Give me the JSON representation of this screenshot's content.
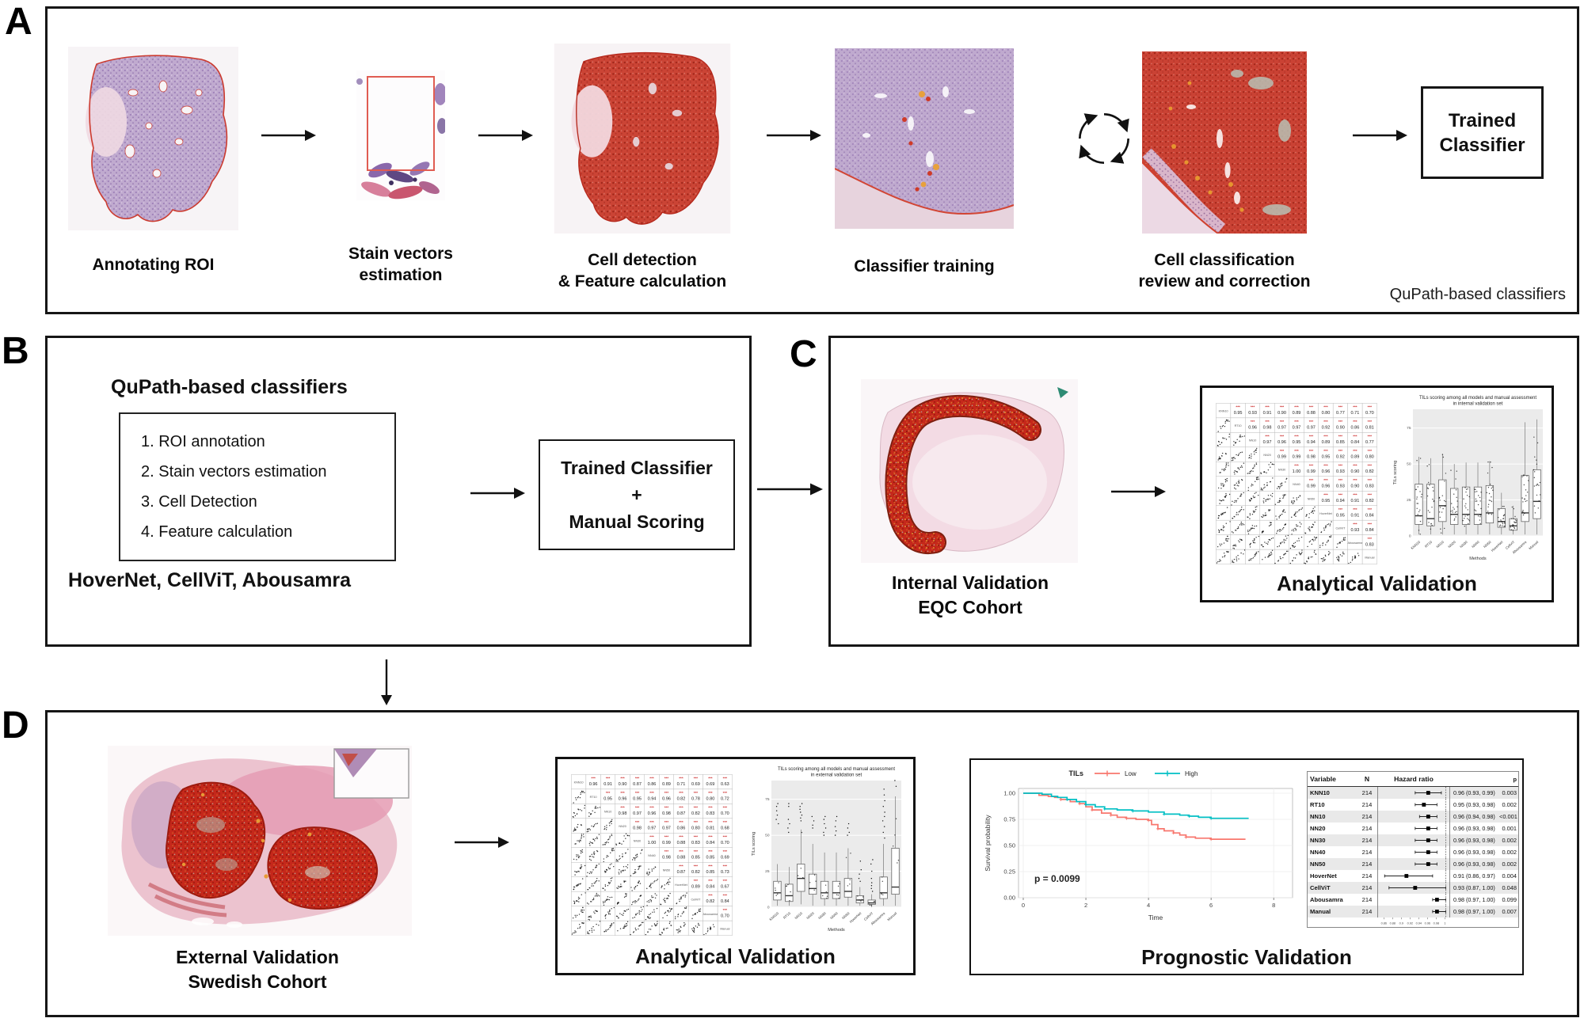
{
  "panel_a": {
    "letter": "A",
    "steps": [
      {
        "caption": [
          "Annotating ROI"
        ]
      },
      {
        "caption": [
          "Stain vectors",
          "estimation"
        ]
      },
      {
        "caption": [
          "Cell detection",
          "& Feature calculation"
        ]
      },
      {
        "caption": [
          "Classifier training"
        ]
      },
      {
        "caption": [
          "Cell classification",
          "review and correction"
        ]
      }
    ],
    "result_box": [
      "Trained",
      "Classifier"
    ],
    "corner_note": "QuPath-based classifiers"
  },
  "panel_b": {
    "letter": "B",
    "heading": "QuPath-based classifiers",
    "pipeline_steps": [
      "1. ROI annotation",
      "2. Stain vectors estimation",
      "3. Cell Detection",
      "4. Feature calculation"
    ],
    "models": "HoverNet, CellViT, Abousamra",
    "result_box": [
      "Trained Classifier",
      "+",
      "Manual Scoring"
    ]
  },
  "panel_c": {
    "letter": "C",
    "cohort_caption": [
      "Internal Validation",
      "EQC Cohort"
    ],
    "validation_title": "Analytical Validation"
  },
  "panel_d": {
    "letter": "D",
    "cohort_caption": [
      "External Validation",
      "Swedish Cohort"
    ],
    "analytical_title": "Analytical Validation",
    "prognostic_title": "Prognostic Validation"
  },
  "methods": [
    "KNN10",
    "RT10",
    "NN10",
    "NN20",
    "NN30",
    "NN40",
    "NN50",
    "HoverNet",
    "CellViT",
    "Abousamra",
    "Manual"
  ],
  "chart_data": {
    "internal_pairs": {
      "type": "scatter",
      "subtype": "pairs-correlation-matrix",
      "significance": "***",
      "upper_r": [
        [
          "0.95",
          "0.93",
          "0.91",
          "0.90",
          "0.89",
          "0.88",
          "0.80",
          "0.77",
          "0.71",
          "0.70"
        ],
        [
          "0.96",
          "0.98",
          "0.97",
          "0.97",
          "0.97",
          "0.92",
          "0.90",
          "0.86",
          "0.81"
        ],
        [
          "0.97",
          "0.96",
          "0.95",
          "0.94",
          "0.89",
          "0.85",
          "0.84",
          "0.77"
        ],
        [
          "0.99",
          "0.99",
          "0.98",
          "0.95",
          "0.92",
          "0.89",
          "0.80"
        ],
        [
          "1.00",
          "0.99",
          "0.96",
          "0.93",
          "0.90",
          "0.82"
        ],
        [
          "0.99",
          "0.96",
          "0.93",
          "0.90",
          "0.83"
        ],
        [
          "0.95",
          "0.94",
          "0.91",
          "0.82"
        ],
        [
          "0.95",
          "0.91",
          "0.84"
        ],
        [
          "0.93",
          "0.84"
        ],
        [
          "0.83"
        ]
      ]
    },
    "internal_box": {
      "type": "box",
      "title": [
        "TILs scoring among all models and manual assessment",
        "in internal validation set"
      ],
      "ylabel": "TILs scoring",
      "xlabel": "Methods",
      "yticks": [
        0,
        25,
        50,
        75
      ],
      "ylim": [
        0,
        88
      ],
      "boxes": [
        [
          1,
          8,
          14,
          36,
          55
        ],
        [
          1,
          7,
          12,
          36,
          54
        ],
        [
          1,
          10,
          21,
          39,
          57
        ],
        [
          1,
          8,
          15,
          33,
          50
        ],
        [
          1,
          8,
          15,
          34,
          51
        ],
        [
          1,
          8,
          15,
          34,
          51
        ],
        [
          1,
          9,
          16,
          35,
          52
        ],
        [
          1,
          6,
          10,
          19,
          30
        ],
        [
          1,
          4,
          7,
          12,
          21
        ],
        [
          1,
          10,
          16,
          42,
          79
        ],
        [
          1,
          12,
          24,
          46,
          81
        ]
      ],
      "outliers": [
        [],
        [],
        [],
        [],
        [],
        [],
        [],
        [],
        [],
        [],
        []
      ],
      "jitter": 20
    },
    "external_pairs": {
      "type": "scatter",
      "subtype": "pairs-correlation-matrix",
      "significance": "***",
      "upper_r": [
        [
          "0.96",
          "0.91",
          "0.90",
          "0.87",
          "0.86",
          "0.89",
          "0.71",
          "0.69",
          "0.69",
          "0.63"
        ],
        [
          "0.95",
          "0.96",
          "0.95",
          "0.94",
          "0.96",
          "0.82",
          "0.78",
          "0.80",
          "0.72"
        ],
        [
          "0.98",
          "0.97",
          "0.96",
          "0.98",
          "0.87",
          "0.82",
          "0.83",
          "0.70"
        ],
        [
          "0.98",
          "0.97",
          "0.97",
          "0.86",
          "0.80",
          "0.81",
          "0.68"
        ],
        [
          "1.00",
          "0.99",
          "0.88",
          "0.83",
          "0.84",
          "0.70"
        ],
        [
          "0.98",
          "0.88",
          "0.85",
          "0.85",
          "0.69"
        ],
        [
          "0.87",
          "0.82",
          "0.85",
          "0.73"
        ],
        [
          "0.89",
          "0.84",
          "0.67"
        ],
        [
          "0.82",
          "0.84"
        ],
        [
          "0.70"
        ]
      ]
    },
    "external_box": {
      "type": "box",
      "title": [
        "TILs scoring among all models and manual assessment",
        "in external validation set"
      ],
      "ylabel": "TILs scoring",
      "xlabel": "Methods",
      "yticks": [
        0,
        25,
        50,
        75
      ],
      "ylim": [
        0,
        88
      ],
      "boxes": [
        [
          1,
          5,
          10,
          18,
          30
        ],
        [
          1,
          4,
          8,
          16,
          28
        ],
        [
          2,
          11,
          20,
          30,
          54
        ],
        [
          1,
          9,
          13,
          23,
          44
        ],
        [
          1,
          6,
          10,
          18,
          38
        ],
        [
          1,
          6,
          10,
          18,
          38
        ],
        [
          1,
          7,
          11,
          20,
          41
        ],
        [
          1,
          3,
          5,
          8,
          14
        ],
        [
          0,
          2,
          3,
          5,
          9
        ],
        [
          1,
          6,
          10,
          21,
          44
        ],
        [
          1,
          9,
          14,
          41,
          77
        ]
      ],
      "outliers": [
        [
          58,
          61,
          64,
          67,
          70,
          72
        ],
        [
          52,
          55,
          58,
          61,
          70,
          72
        ],
        [
          60,
          62,
          64,
          66,
          68,
          70,
          72
        ],
        [
          55,
          57,
          60,
          63
        ],
        [
          50,
          52,
          55,
          58,
          61,
          63
        ],
        [
          50,
          53,
          56,
          60,
          63
        ],
        [
          50,
          52,
          55,
          58
        ],
        [
          18,
          20,
          23,
          26,
          32
        ],
        [
          11,
          13,
          15,
          17,
          20,
          25,
          30,
          33
        ],
        [
          48,
          52,
          56,
          60,
          63,
          66,
          70,
          74,
          78,
          82
        ],
        [
          84,
          88
        ]
      ],
      "jitter": 5
    },
    "km": {
      "type": "line",
      "subtype": "kaplan-meier",
      "legend_title": "TILs",
      "series": [
        {
          "name": "Low",
          "color": "#F8766D",
          "points": [
            [
              0,
              1
            ],
            [
              0.3,
              1
            ],
            [
              0.5,
              0.98
            ],
            [
              0.8,
              0.97
            ],
            [
              1,
              0.96
            ],
            [
              1.2,
              0.94
            ],
            [
              1.5,
              0.92
            ],
            [
              1.8,
              0.9
            ],
            [
              2,
              0.87
            ],
            [
              2.2,
              0.84
            ],
            [
              2.5,
              0.81
            ],
            [
              2.8,
              0.79
            ],
            [
              3,
              0.77
            ],
            [
              3.3,
              0.76
            ],
            [
              3.6,
              0.75
            ],
            [
              4,
              0.74
            ],
            [
              4.1,
              0.7
            ],
            [
              4.3,
              0.66
            ],
            [
              4.5,
              0.64
            ],
            [
              4.8,
              0.62
            ],
            [
              5,
              0.6
            ],
            [
              5.2,
              0.58
            ],
            [
              5.5,
              0.57
            ],
            [
              6,
              0.56
            ],
            [
              7.1,
              0.56
            ]
          ]
        },
        {
          "name": "High",
          "color": "#00BFC4",
          "points": [
            [
              0,
              1
            ],
            [
              0.4,
              1
            ],
            [
              0.6,
              0.99
            ],
            [
              0.9,
              0.97
            ],
            [
              1.1,
              0.96
            ],
            [
              1.4,
              0.94
            ],
            [
              1.7,
              0.92
            ],
            [
              2,
              0.89
            ],
            [
              2.3,
              0.87
            ],
            [
              2.6,
              0.85
            ],
            [
              3,
              0.84
            ],
            [
              3.5,
              0.83
            ],
            [
              4,
              0.82
            ],
            [
              4.5,
              0.8
            ],
            [
              5,
              0.79
            ],
            [
              5.3,
              0.78
            ],
            [
              5.6,
              0.77
            ],
            [
              6,
              0.76
            ],
            [
              7.2,
              0.76
            ]
          ]
        }
      ],
      "ylabel": "Survival probability",
      "xlabel": "Time",
      "yticks": [
        "0.00",
        "0.25",
        "0.50",
        "0.75",
        "1.00"
      ],
      "xticks": [
        0,
        2,
        4,
        6,
        8
      ],
      "p_label": "p = 0.0099"
    },
    "forest": {
      "type": "table",
      "subtype": "forest-plot",
      "headers": [
        "Variable",
        "N",
        "Hazard ratio",
        "p"
      ],
      "axis_ticks": [
        "0.86",
        "0.88",
        "0.9",
        "0.92",
        "0.94",
        "0.96",
        "0.98",
        "1"
      ],
      "axis_values": [
        0.86,
        0.88,
        0.9,
        0.92,
        0.94,
        0.96,
        0.98,
        1
      ],
      "rows": [
        {
          "variable": "KNN10",
          "n": "214",
          "hr": 0.96,
          "lo": 0.93,
          "hi": 0.99,
          "ci": "0.96 (0.93, 0.99)",
          "p": "0.003"
        },
        {
          "variable": "RT10",
          "n": "214",
          "hr": 0.95,
          "lo": 0.93,
          "hi": 0.98,
          "ci": "0.95 (0.93, 0.98)",
          "p": "0.002"
        },
        {
          "variable": "NN10",
          "n": "214",
          "hr": 0.96,
          "lo": 0.94,
          "hi": 0.98,
          "ci": "0.96 (0.94, 0.98)",
          "p": "<0.001"
        },
        {
          "variable": "NN20",
          "n": "214",
          "hr": 0.96,
          "lo": 0.93,
          "hi": 0.98,
          "ci": "0.96 (0.93, 0.98)",
          "p": "0.001"
        },
        {
          "variable": "NN30",
          "n": "214",
          "hr": 0.96,
          "lo": 0.93,
          "hi": 0.98,
          "ci": "0.96 (0.93, 0.98)",
          "p": "0.002"
        },
        {
          "variable": "NN40",
          "n": "214",
          "hr": 0.96,
          "lo": 0.93,
          "hi": 0.98,
          "ci": "0.96 (0.93, 0.98)",
          "p": "0.002"
        },
        {
          "variable": "NN50",
          "n": "214",
          "hr": 0.96,
          "lo": 0.93,
          "hi": 0.98,
          "ci": "0.96 (0.93, 0.98)",
          "p": "0.002"
        },
        {
          "variable": "HoverNet",
          "n": "214",
          "hr": 0.91,
          "lo": 0.86,
          "hi": 0.97,
          "ci": "0.91 (0.86, 0.97)",
          "p": "0.004"
        },
        {
          "variable": "CellViT",
          "n": "214",
          "hr": 0.93,
          "lo": 0.87,
          "hi": 1.0,
          "ci": "0.93 (0.87, 1.00)",
          "p": "0.048"
        },
        {
          "variable": "Abousamra",
          "n": "214",
          "hr": 0.98,
          "lo": 0.97,
          "hi": 1.0,
          "ci": "0.98 (0.97, 1.00)",
          "p": "0.099"
        },
        {
          "variable": "Manual",
          "n": "214",
          "hr": 0.98,
          "lo": 0.97,
          "hi": 1.0,
          "ci": "0.98 (0.97, 1.00)",
          "p": "0.007"
        }
      ]
    }
  }
}
